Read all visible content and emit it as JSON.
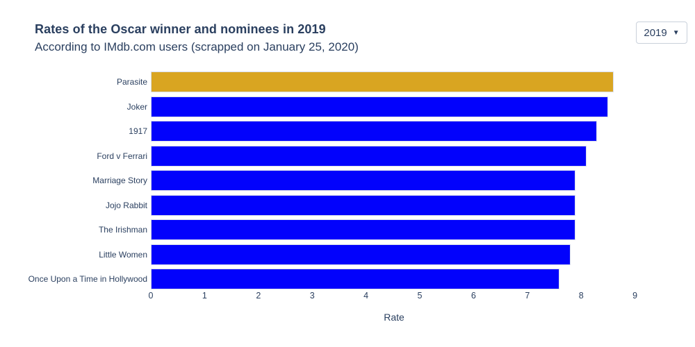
{
  "header": {
    "title": "Rates of the Oscar winner and nominees in 2019",
    "subtitle": "According to IMdb.com users (scrapped on January 25, 2020)",
    "year_selector": {
      "value": "2019",
      "caret_icon": "▼"
    }
  },
  "chart_data": {
    "type": "bar",
    "orientation": "horizontal",
    "categories": [
      "Parasite",
      "Joker",
      "1917",
      "Ford v Ferrari",
      "Marriage Story",
      "Jojo Rabbit",
      "The Irishman",
      "Little Women",
      "Once Upon a Time in Hollywood"
    ],
    "values": [
      8.6,
      8.5,
      8.3,
      8.1,
      7.9,
      7.9,
      7.9,
      7.8,
      7.6
    ],
    "winner_index": 0,
    "xlabel": "Rate",
    "xticks": [
      0,
      1,
      2,
      3,
      4,
      5,
      6,
      7,
      8,
      9
    ],
    "xlim": [
      0,
      9.2
    ],
    "grid": false,
    "legend": "none",
    "colors": {
      "winner_bar": "#d9a521",
      "nominee_bar": "#0202fc",
      "text": "#2a3f5f",
      "bar_outline": "#d9deec"
    }
  }
}
